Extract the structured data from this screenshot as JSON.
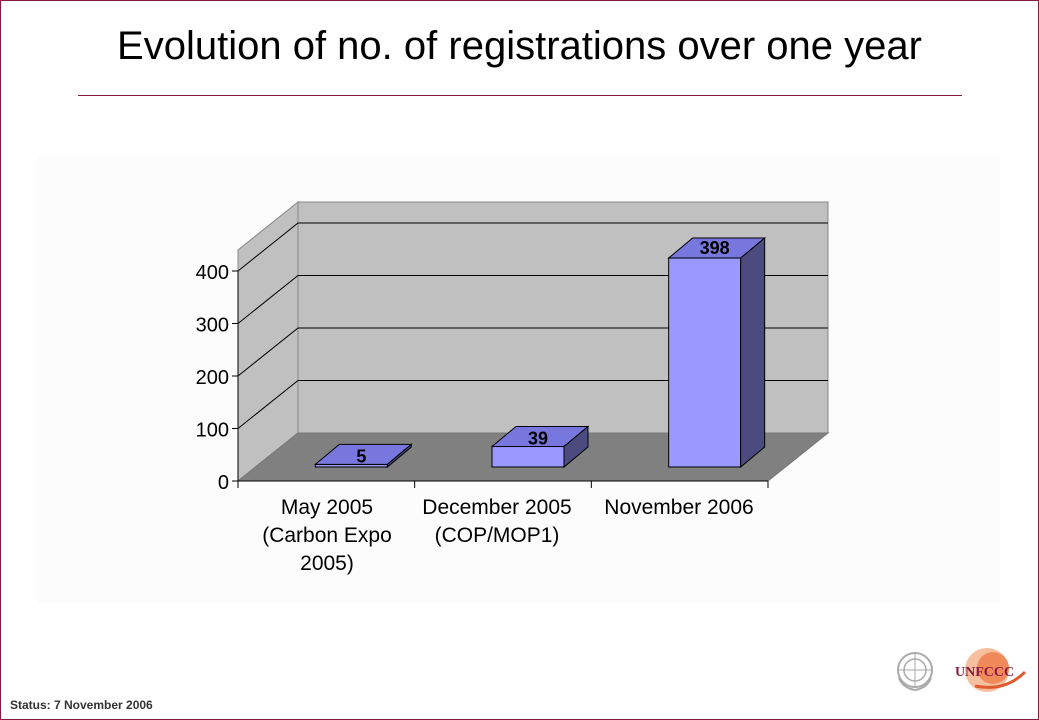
{
  "slide": {
    "title": "Evolution of no. of registrations over one year",
    "status": "Status: 7 November 2006",
    "logo_text": "UNFCCC"
  },
  "colors": {
    "frame": "#8b1a3e",
    "wall": "#c0c0c0",
    "floor": "#808080",
    "bar_front": "#9999ff",
    "bar_top": "#7777dd",
    "bar_side": "#4b4b80"
  },
  "chart_data": {
    "type": "bar",
    "style": "3d",
    "title": "",
    "xlabel": "",
    "ylabel": "",
    "categories": [
      "May 2005 (Carbon Expo 2005)",
      "December 2005 (COP/MOP1)",
      "November 2006"
    ],
    "category_lines": [
      [
        "May 2005",
        "(Carbon Expo",
        "2005)"
      ],
      [
        "December 2005",
        "(COP/MOP1)"
      ],
      [
        "November 2006"
      ]
    ],
    "values": [
      5,
      39,
      398
    ],
    "data_labels": [
      "5",
      "39",
      "398"
    ],
    "ylim": [
      0,
      400
    ],
    "yticks": [
      0,
      100,
      200,
      300,
      400
    ],
    "grid": true,
    "legend": "none"
  }
}
